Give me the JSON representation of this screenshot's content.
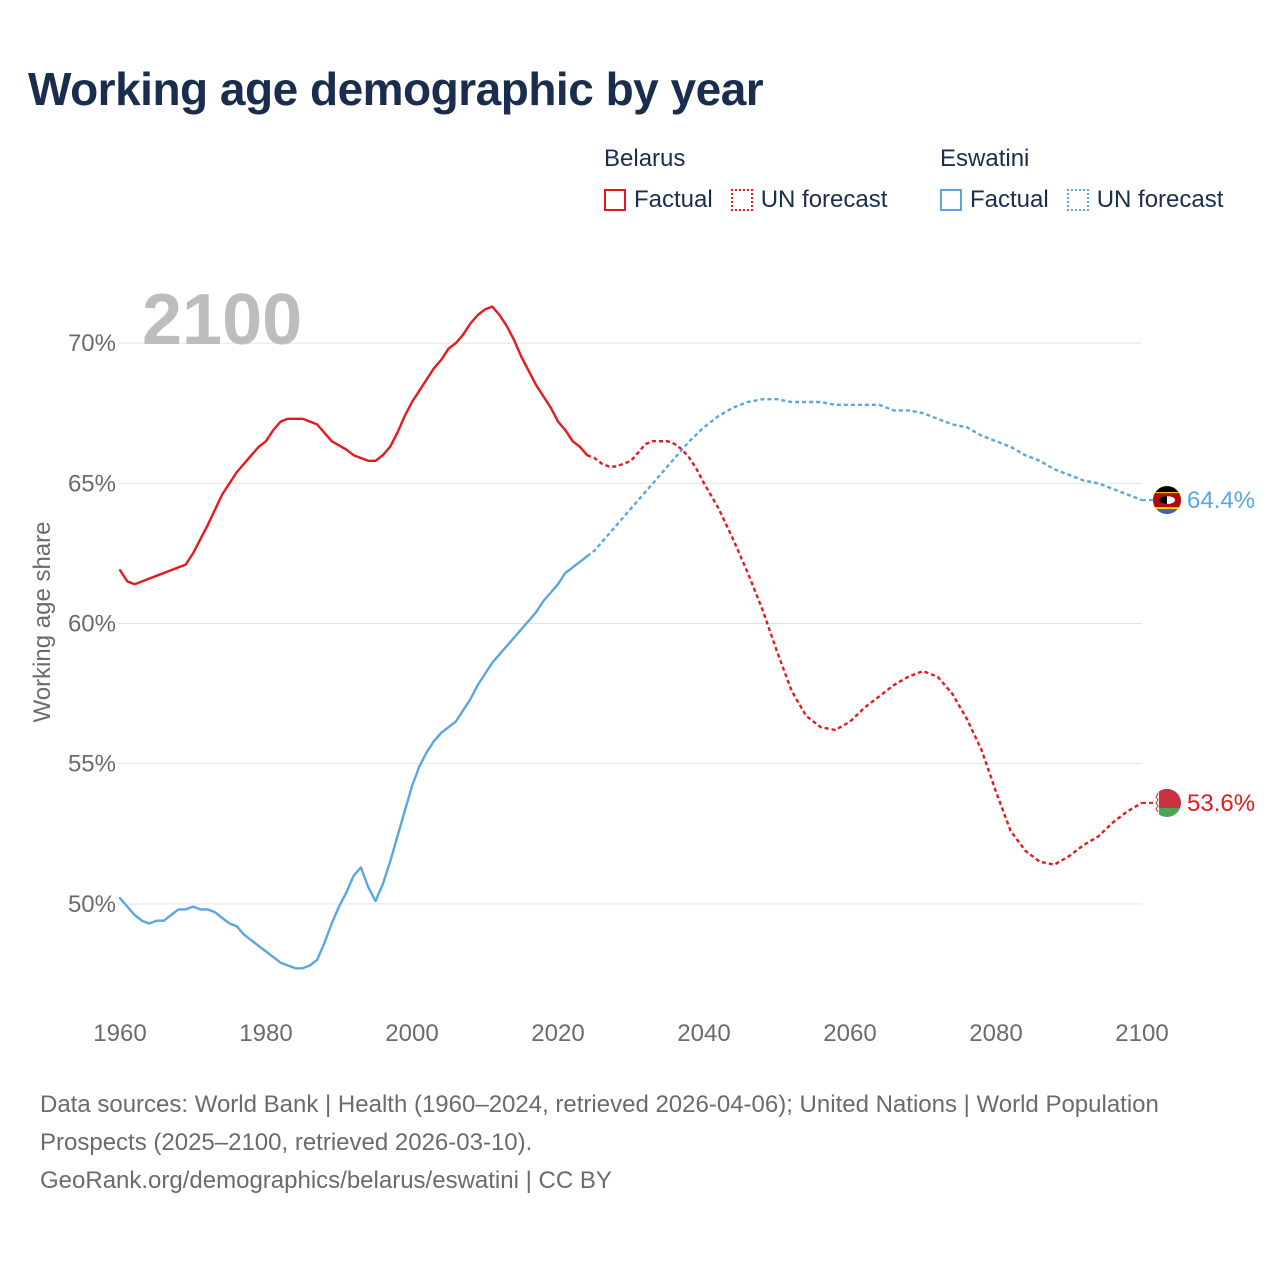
{
  "title": "Working age demographic by year",
  "legend": {
    "groups": [
      {
        "name": "Belarus",
        "factual_label": "Factual",
        "forecast_label": "UN forecast",
        "color": "#e41a1c"
      },
      {
        "name": "Eswatini",
        "factual_label": "Factual",
        "forecast_label": "UN forecast",
        "color": "#5aa7e0"
      }
    ]
  },
  "footer": {
    "sources": "Data sources: World Bank | Health (1960–2024, retrieved 2026-04-06); United Nations | World Population Prospects (2025–2100, retrieved 2026-03-10).",
    "credit": "GeoRank.org/demographics/belarus/eswatini | CC BY"
  },
  "chart_data": {
    "type": "line",
    "title": "Working age demographic by year",
    "year_label": "2100",
    "xlabel": "",
    "ylabel": "Working age share",
    "xlim": [
      1960,
      2100
    ],
    "ylim": [
      45.5,
      72.5
    ],
    "xticks": [
      1960,
      1980,
      2000,
      2020,
      2040,
      2060,
      2080,
      2100
    ],
    "xtick_labels": [
      "1960",
      "1980",
      "2000",
      "2020",
      "2040",
      "2060",
      "2080",
      "2100"
    ],
    "yticks": [
      50,
      55,
      60,
      65,
      70
    ],
    "ytick_labels": [
      "50%",
      "55%",
      "60%",
      "65%",
      "70%"
    ],
    "grid": true,
    "series": [
      {
        "name": "Belarus",
        "color": "#e41a1c",
        "end_label": "53.6%",
        "factual": [
          [
            1960,
            61.9
          ],
          [
            1961,
            61.5
          ],
          [
            1962,
            61.4
          ],
          [
            1964,
            61.6
          ],
          [
            1966,
            61.8
          ],
          [
            1968,
            62.0
          ],
          [
            1969,
            62.1
          ],
          [
            1970,
            62.5
          ],
          [
            1972,
            63.5
          ],
          [
            1974,
            64.6
          ],
          [
            1976,
            65.4
          ],
          [
            1978,
            66.0
          ],
          [
            1979,
            66.3
          ],
          [
            1980,
            66.5
          ],
          [
            1981,
            66.9
          ],
          [
            1982,
            67.2
          ],
          [
            1983,
            67.3
          ],
          [
            1985,
            67.3
          ],
          [
            1987,
            67.1
          ],
          [
            1989,
            66.5
          ],
          [
            1991,
            66.2
          ],
          [
            1992,
            66.0
          ],
          [
            1993,
            65.9
          ],
          [
            1994,
            65.8
          ],
          [
            1995,
            65.8
          ],
          [
            1996,
            66.0
          ],
          [
            1997,
            66.3
          ],
          [
            1998,
            66.8
          ],
          [
            1999,
            67.4
          ],
          [
            2000,
            67.9
          ],
          [
            2001,
            68.3
          ],
          [
            2002,
            68.7
          ],
          [
            2003,
            69.1
          ],
          [
            2004,
            69.4
          ],
          [
            2005,
            69.8
          ],
          [
            2006,
            70.0
          ],
          [
            2007,
            70.3
          ],
          [
            2008,
            70.7
          ],
          [
            2009,
            71.0
          ],
          [
            2010,
            71.2
          ],
          [
            2011,
            71.3
          ],
          [
            2012,
            71.0
          ],
          [
            2013,
            70.6
          ],
          [
            2014,
            70.1
          ],
          [
            2015,
            69.5
          ],
          [
            2016,
            69.0
          ],
          [
            2017,
            68.5
          ],
          [
            2018,
            68.1
          ],
          [
            2019,
            67.7
          ],
          [
            2020,
            67.2
          ],
          [
            2021,
            66.9
          ],
          [
            2022,
            66.5
          ],
          [
            2023,
            66.3
          ],
          [
            2024,
            66.0
          ]
        ],
        "forecast": [
          [
            2024,
            66.0
          ],
          [
            2025,
            65.9
          ],
          [
            2026,
            65.7
          ],
          [
            2027,
            65.6
          ],
          [
            2028,
            65.6
          ],
          [
            2029,
            65.7
          ],
          [
            2030,
            65.8
          ],
          [
            2031,
            66.1
          ],
          [
            2032,
            66.4
          ],
          [
            2033,
            66.5
          ],
          [
            2034,
            66.5
          ],
          [
            2035,
            66.5
          ],
          [
            2036,
            66.4
          ],
          [
            2037,
            66.2
          ],
          [
            2038,
            65.9
          ],
          [
            2039,
            65.5
          ],
          [
            2040,
            65.0
          ],
          [
            2042,
            64.1
          ],
          [
            2044,
            63.0
          ],
          [
            2046,
            61.8
          ],
          [
            2048,
            60.5
          ],
          [
            2050,
            59.0
          ],
          [
            2052,
            57.6
          ],
          [
            2054,
            56.7
          ],
          [
            2056,
            56.3
          ],
          [
            2058,
            56.2
          ],
          [
            2060,
            56.5
          ],
          [
            2062,
            57.0
          ],
          [
            2064,
            57.4
          ],
          [
            2066,
            57.8
          ],
          [
            2068,
            58.1
          ],
          [
            2070,
            58.3
          ],
          [
            2072,
            58.1
          ],
          [
            2074,
            57.5
          ],
          [
            2076,
            56.6
          ],
          [
            2078,
            55.5
          ],
          [
            2080,
            54.0
          ],
          [
            2082,
            52.6
          ],
          [
            2084,
            51.9
          ],
          [
            2086,
            51.5
          ],
          [
            2088,
            51.4
          ],
          [
            2090,
            51.7
          ],
          [
            2092,
            52.1
          ],
          [
            2094,
            52.4
          ],
          [
            2096,
            52.9
          ],
          [
            2098,
            53.3
          ],
          [
            2100,
            53.6
          ]
        ]
      },
      {
        "name": "Eswatini",
        "color": "#5aa7e0",
        "end_label": "64.4%",
        "factual": [
          [
            1960,
            50.2
          ],
          [
            1961,
            49.9
          ],
          [
            1962,
            49.6
          ],
          [
            1963,
            49.4
          ],
          [
            1964,
            49.3
          ],
          [
            1965,
            49.4
          ],
          [
            1966,
            49.4
          ],
          [
            1967,
            49.6
          ],
          [
            1968,
            49.8
          ],
          [
            1969,
            49.8
          ],
          [
            1970,
            49.9
          ],
          [
            1971,
            49.8
          ],
          [
            1972,
            49.8
          ],
          [
            1973,
            49.7
          ],
          [
            1974,
            49.5
          ],
          [
            1975,
            49.3
          ],
          [
            1976,
            49.2
          ],
          [
            1977,
            48.9
          ],
          [
            1978,
            48.7
          ],
          [
            1979,
            48.5
          ],
          [
            1980,
            48.3
          ],
          [
            1981,
            48.1
          ],
          [
            1982,
            47.9
          ],
          [
            1983,
            47.8
          ],
          [
            1984,
            47.7
          ],
          [
            1985,
            47.7
          ],
          [
            1986,
            47.8
          ],
          [
            1987,
            48.0
          ],
          [
            1988,
            48.6
          ],
          [
            1989,
            49.3
          ],
          [
            1990,
            49.9
          ],
          [
            1991,
            50.4
          ],
          [
            1992,
            51.0
          ],
          [
            1993,
            51.3
          ],
          [
            1994,
            50.6
          ],
          [
            1995,
            50.1
          ],
          [
            1996,
            50.7
          ],
          [
            1997,
            51.5
          ],
          [
            1998,
            52.4
          ],
          [
            1999,
            53.3
          ],
          [
            2000,
            54.2
          ],
          [
            2001,
            54.9
          ],
          [
            2002,
            55.4
          ],
          [
            2003,
            55.8
          ],
          [
            2004,
            56.1
          ],
          [
            2005,
            56.3
          ],
          [
            2006,
            56.5
          ],
          [
            2007,
            56.9
          ],
          [
            2008,
            57.3
          ],
          [
            2009,
            57.8
          ],
          [
            2010,
            58.2
          ],
          [
            2011,
            58.6
          ],
          [
            2012,
            58.9
          ],
          [
            2013,
            59.2
          ],
          [
            2014,
            59.5
          ],
          [
            2015,
            59.8
          ],
          [
            2016,
            60.1
          ],
          [
            2017,
            60.4
          ],
          [
            2018,
            60.8
          ],
          [
            2019,
            61.1
          ],
          [
            2020,
            61.4
          ],
          [
            2021,
            61.8
          ],
          [
            2022,
            62.0
          ],
          [
            2023,
            62.2
          ],
          [
            2024,
            62.4
          ]
        ],
        "forecast": [
          [
            2024,
            62.4
          ],
          [
            2025,
            62.6
          ],
          [
            2026,
            62.9
          ],
          [
            2028,
            63.5
          ],
          [
            2030,
            64.1
          ],
          [
            2032,
            64.7
          ],
          [
            2034,
            65.3
          ],
          [
            2036,
            65.9
          ],
          [
            2038,
            66.5
          ],
          [
            2040,
            67.0
          ],
          [
            2042,
            67.4
          ],
          [
            2044,
            67.7
          ],
          [
            2046,
            67.9
          ],
          [
            2048,
            68.0
          ],
          [
            2050,
            68.0
          ],
          [
            2052,
            67.9
          ],
          [
            2054,
            67.9
          ],
          [
            2056,
            67.9
          ],
          [
            2058,
            67.8
          ],
          [
            2060,
            67.8
          ],
          [
            2062,
            67.8
          ],
          [
            2064,
            67.8
          ],
          [
            2066,
            67.6
          ],
          [
            2068,
            67.6
          ],
          [
            2070,
            67.5
          ],
          [
            2072,
            67.3
          ],
          [
            2074,
            67.1
          ],
          [
            2076,
            67.0
          ],
          [
            2078,
            66.7
          ],
          [
            2080,
            66.5
          ],
          [
            2082,
            66.3
          ],
          [
            2084,
            66.0
          ],
          [
            2086,
            65.8
          ],
          [
            2088,
            65.5
          ],
          [
            2090,
            65.3
          ],
          [
            2092,
            65.1
          ],
          [
            2094,
            65.0
          ],
          [
            2096,
            64.8
          ],
          [
            2098,
            64.6
          ],
          [
            2100,
            64.4
          ]
        ]
      }
    ]
  },
  "flags": {
    "belarus": {
      "red": "#c8313e",
      "green": "#4aa657",
      "white": "#ffffff"
    },
    "eswatini": {
      "blue": "#3e5eb9",
      "yellow": "#ffd900",
      "red": "#b10c0c",
      "black": "#000000",
      "white": "#ffffff"
    }
  }
}
